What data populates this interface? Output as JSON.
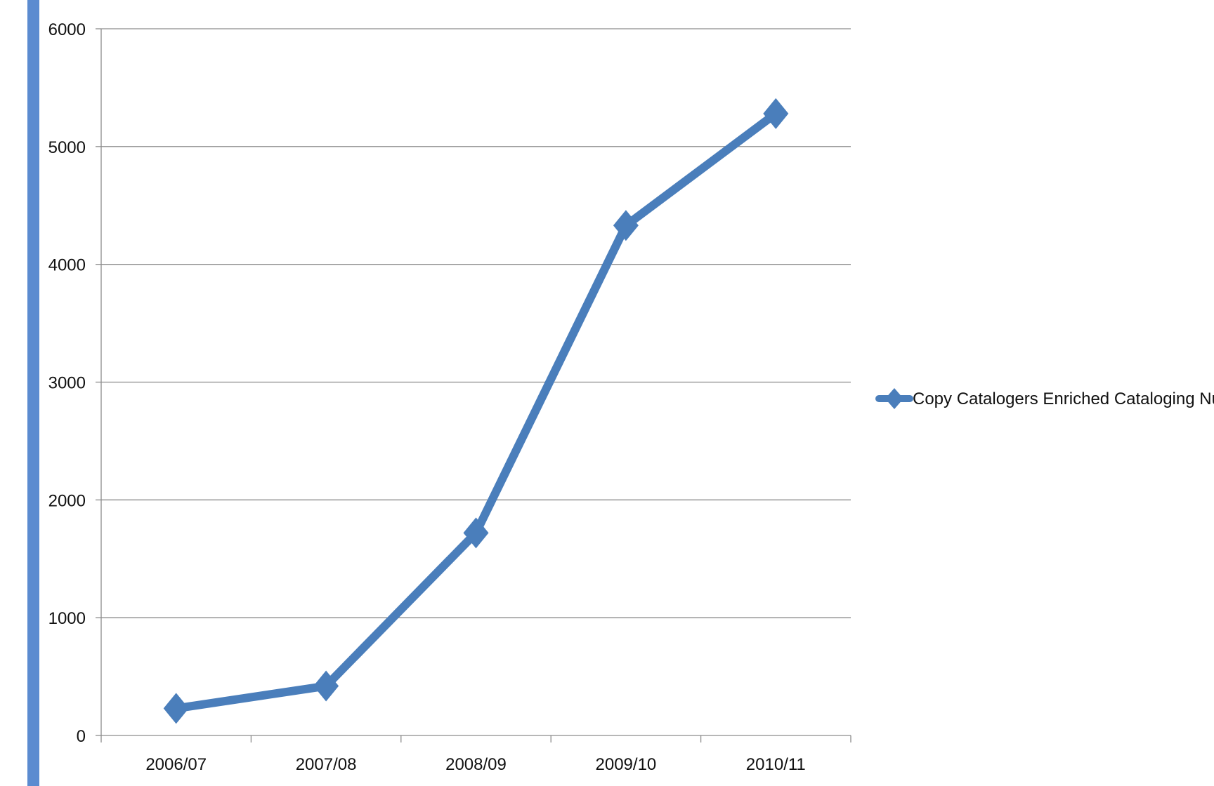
{
  "accent_bar_color": "#5b8bd0",
  "chart_data": {
    "type": "line",
    "categories": [
      "2006/07",
      "2007/08",
      "2008/09",
      "2009/10",
      "2010/11"
    ],
    "series": [
      {
        "name": "Copy Catalogers Enriched Cataloging Numbers",
        "values": [
          230,
          420,
          1720,
          4330,
          5280
        ],
        "color": "#4a7ebb",
        "marker": "diamond"
      }
    ],
    "y_ticks": [
      "0",
      "1000",
      "2000",
      "3000",
      "4000",
      "5000",
      "6000"
    ],
    "ylim": [
      0,
      6000
    ],
    "grid": "horizontal",
    "legend_position": "right"
  }
}
